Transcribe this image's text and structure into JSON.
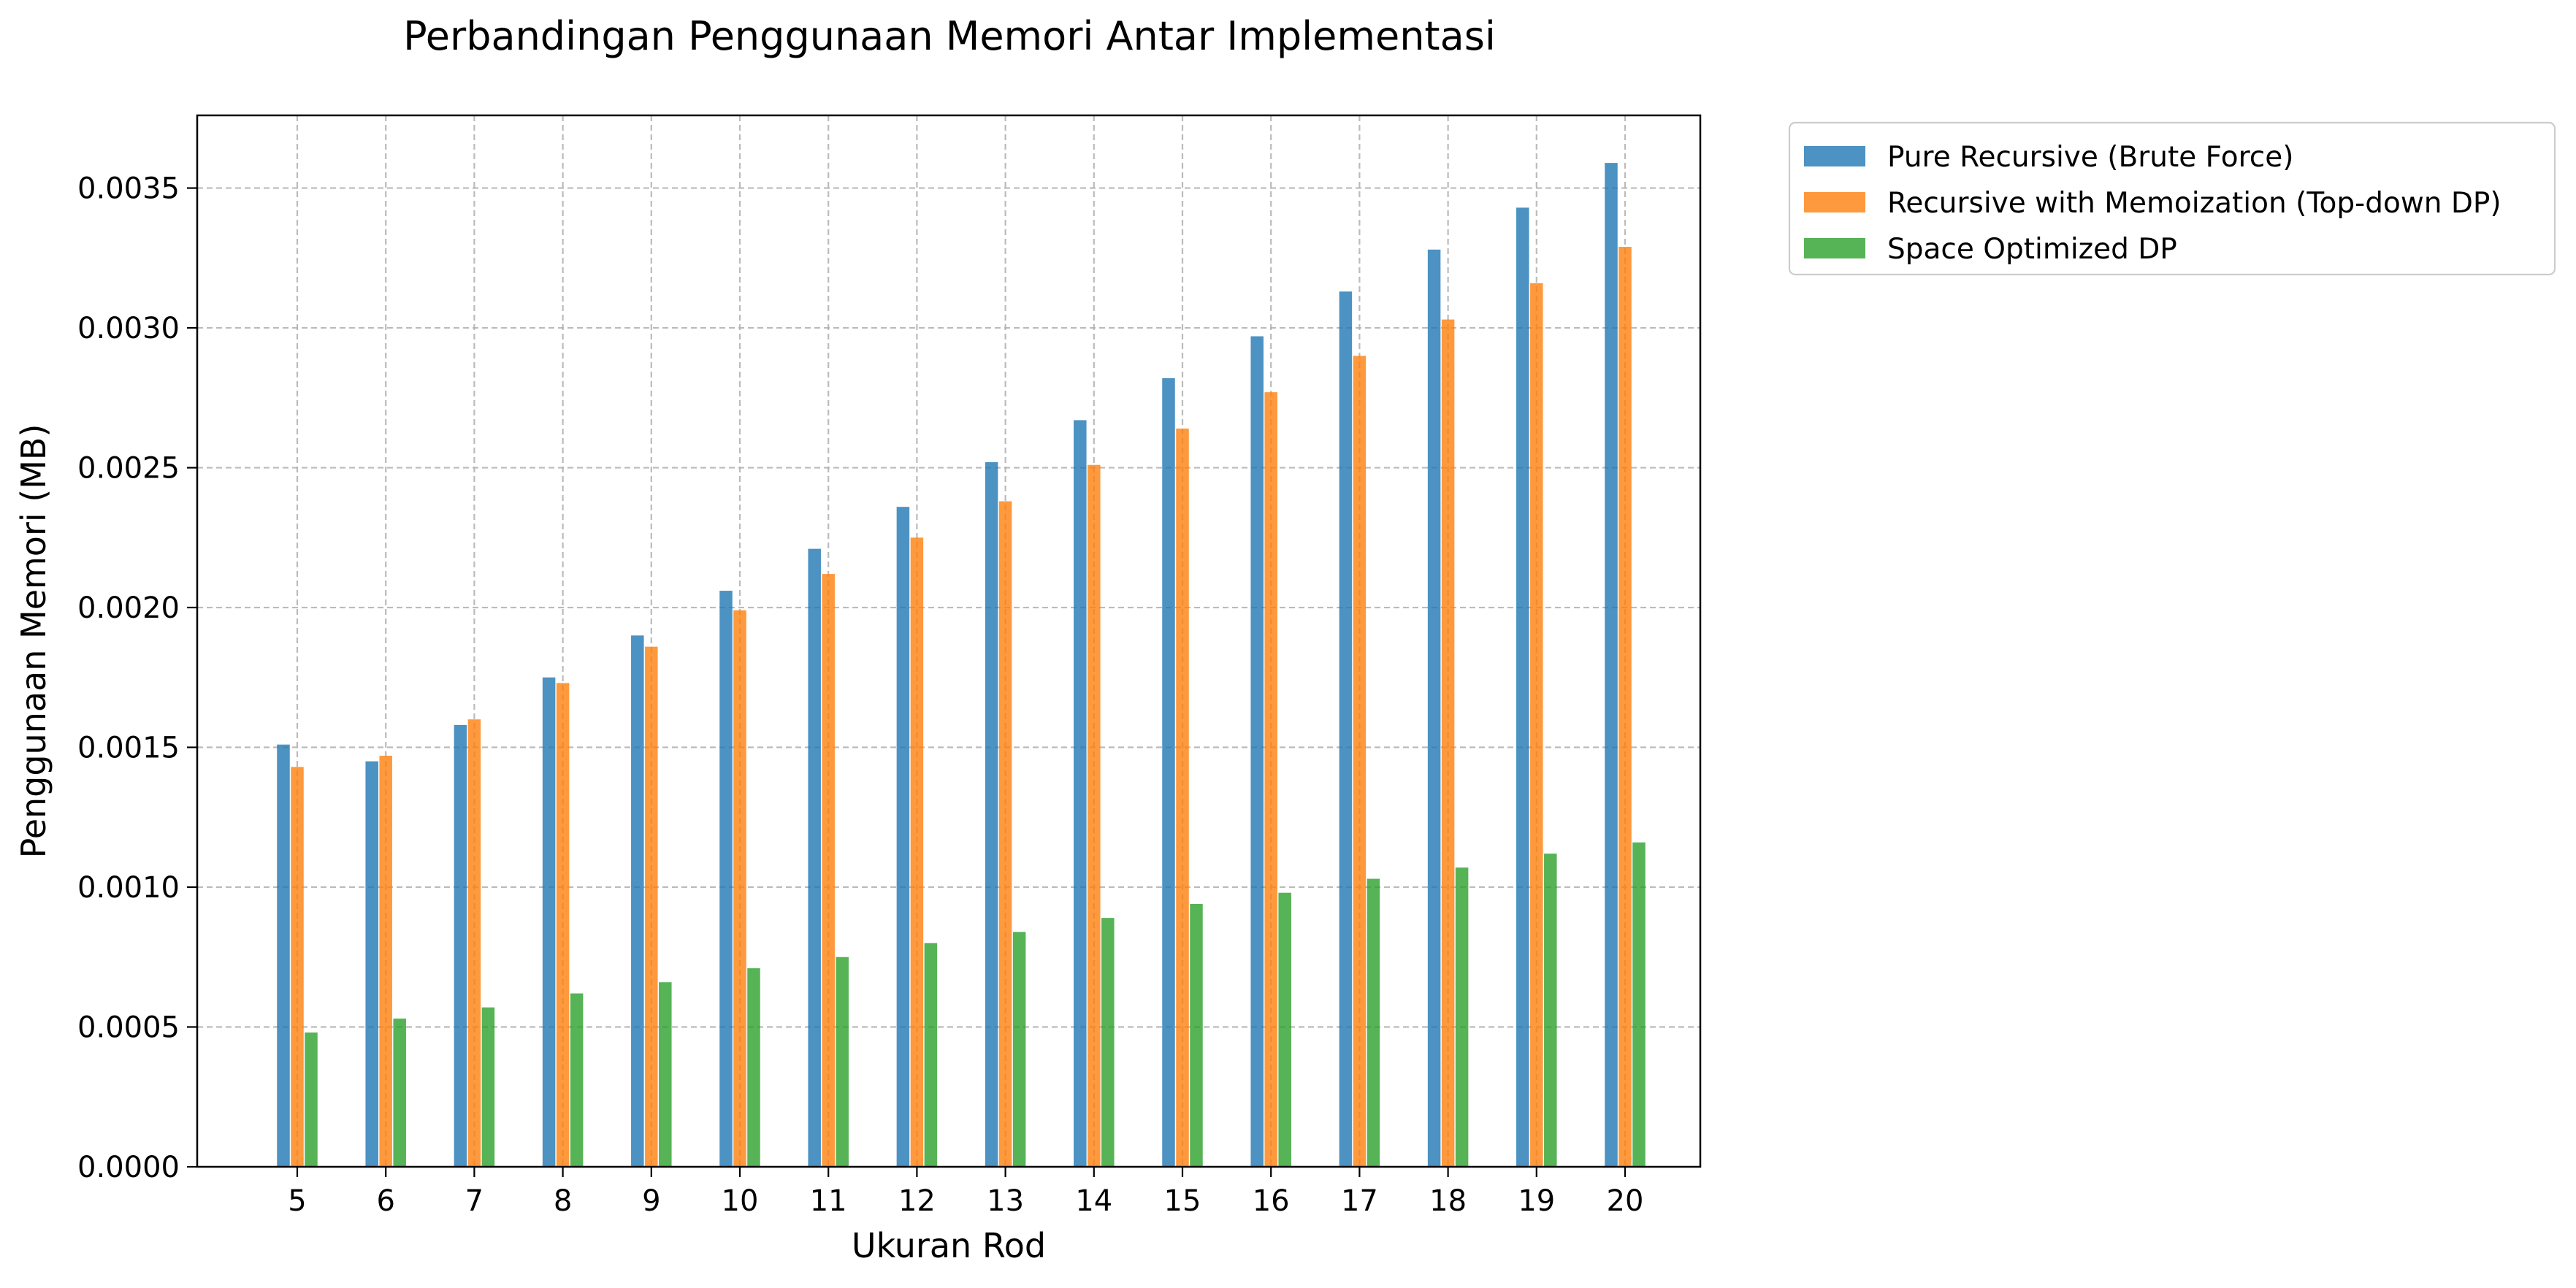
{
  "chart_data": {
    "type": "bar",
    "title": "Perbandingan Penggunaan Memori Antar Implementasi",
    "xlabel": "Ukuran Rod",
    "ylabel": "Penggunaan Memori (MB)",
    "categories": [
      "5",
      "6",
      "7",
      "8",
      "9",
      "10",
      "11",
      "12",
      "13",
      "14",
      "15",
      "16",
      "17",
      "18",
      "19",
      "20"
    ],
    "y_ticks": [
      "0.0000",
      "0.0005",
      "0.0010",
      "0.0015",
      "0.0020",
      "0.0025",
      "0.0030",
      "0.0035"
    ],
    "ylim": [
      0,
      0.00376
    ],
    "grid": true,
    "legend_position": "outside-top-right",
    "series": [
      {
        "name": "Pure Recursive (Brute Force)",
        "color": "#1f77b4",
        "values": [
          0.00151,
          0.00145,
          0.00158,
          0.00175,
          0.0019,
          0.00206,
          0.00221,
          0.00236,
          0.00252,
          0.00267,
          0.00282,
          0.00297,
          0.00313,
          0.00328,
          0.00343,
          0.00359
        ]
      },
      {
        "name": "Recursive with Memoization (Top-down DP)",
        "color": "#ff7f0e",
        "values": [
          0.00143,
          0.00147,
          0.0016,
          0.00173,
          0.00186,
          0.00199,
          0.00212,
          0.00225,
          0.00238,
          0.00251,
          0.00264,
          0.00277,
          0.0029,
          0.00303,
          0.00316,
          0.00329
        ]
      },
      {
        "name": "Space Optimized DP",
        "color": "#2ca02c",
        "values": [
          0.00048,
          0.00053,
          0.00057,
          0.00062,
          0.00066,
          0.00071,
          0.00075,
          0.0008,
          0.00084,
          0.00089,
          0.00094,
          0.00098,
          0.00103,
          0.00107,
          0.00112,
          0.00116
        ]
      }
    ]
  }
}
